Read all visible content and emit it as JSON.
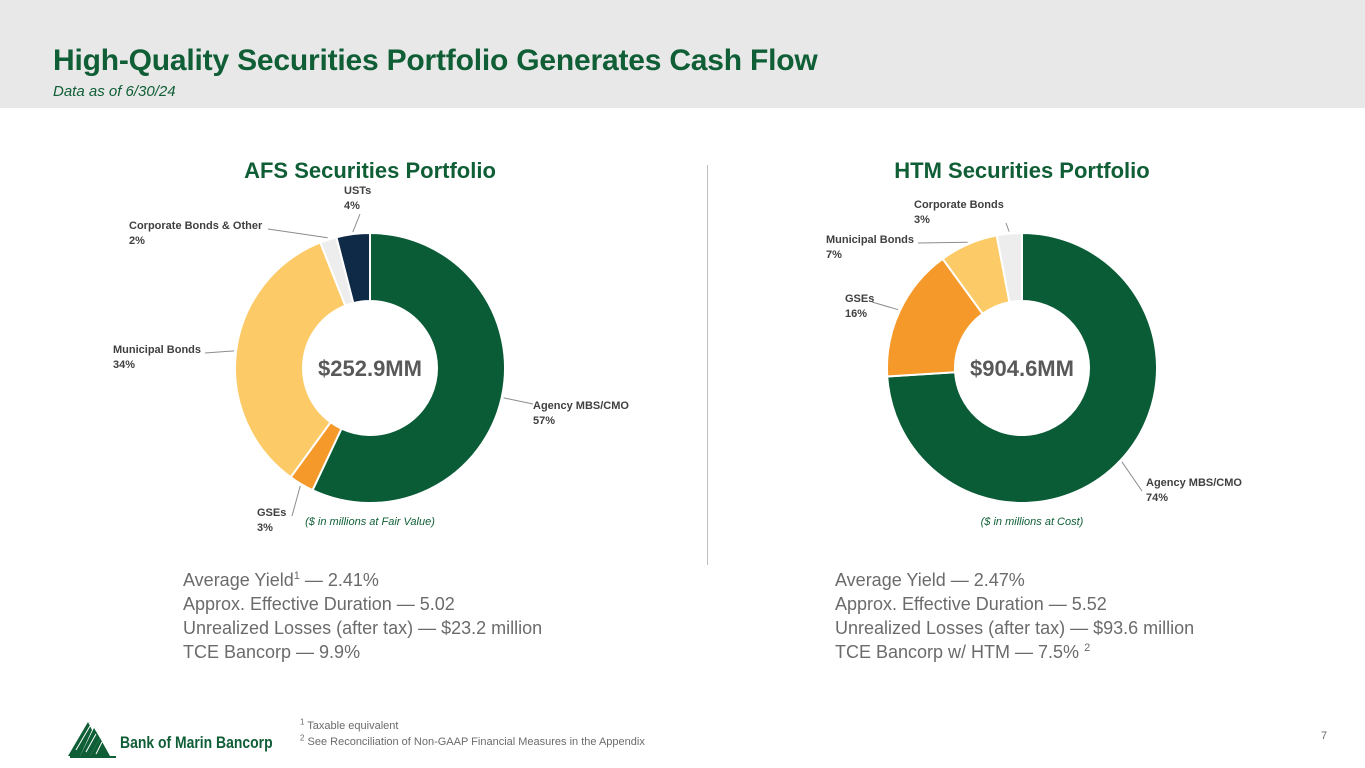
{
  "header": {
    "title": "High-Quality Securities Portfolio Generates Cash Flow",
    "subtitle": "Data as of 6/30/24"
  },
  "chart_data": [
    {
      "type": "pie",
      "title": "AFS Securities Portfolio",
      "center_label": "$252.9MM",
      "note": "($ in millions at Fair Value)",
      "categories": [
        "Agency MBS/CMO",
        "GSEs",
        "Municipal Bonds",
        "Corporate Bonds & Other",
        "USTs"
      ],
      "values": [
        57,
        3,
        34,
        2,
        4
      ],
      "value_labels": [
        "57%",
        "3%",
        "34%",
        "2%",
        "4%"
      ],
      "colors": [
        "#0a5c36",
        "#f59a2a",
        "#fccb67",
        "#ededed",
        "#0f2a47"
      ]
    },
    {
      "type": "pie",
      "title": "HTM Securities Portfolio",
      "center_label": "$904.6MM",
      "note": "($ in millions at Cost)",
      "categories": [
        "Agency MBS/CMO",
        "GSEs",
        "Municipal Bonds",
        "Corporate Bonds"
      ],
      "values": [
        74,
        16,
        7,
        3
      ],
      "value_labels": [
        "74%",
        "16%",
        "7%",
        "3%"
      ],
      "colors": [
        "#0a5c36",
        "#f59a2a",
        "#fccb67",
        "#ededed"
      ]
    }
  ],
  "afs_stats": {
    "yield": "Average Yield",
    "yield_sup": "1",
    "yield_value": " — 2.41%",
    "duration": "Approx. Effective Duration — 5.02",
    "losses": "Unrealized Losses (after tax) — $23.2 million",
    "tce": "TCE Bancorp — 9.9%"
  },
  "htm_stats": {
    "yield": "Average Yield — 2.47%",
    "duration": "Approx. Effective Duration — 5.52",
    "losses": "Unrealized Losses (after tax) — $93.6 million",
    "tce": "TCE Bancorp w/ HTM — 7.5% ",
    "tce_sup": "2"
  },
  "footnotes": {
    "n1_mark": "1",
    "n1": " Taxable equivalent",
    "n2_mark": "2",
    "n2": " See Reconciliation of Non-GAAP Financial Measures in the Appendix"
  },
  "footer": {
    "logo_text": "Bank of Marin Bancorp",
    "page_number": "7"
  },
  "colors": {
    "brand_green": "#0f5e36",
    "header_bg": "#e8e8e8"
  }
}
